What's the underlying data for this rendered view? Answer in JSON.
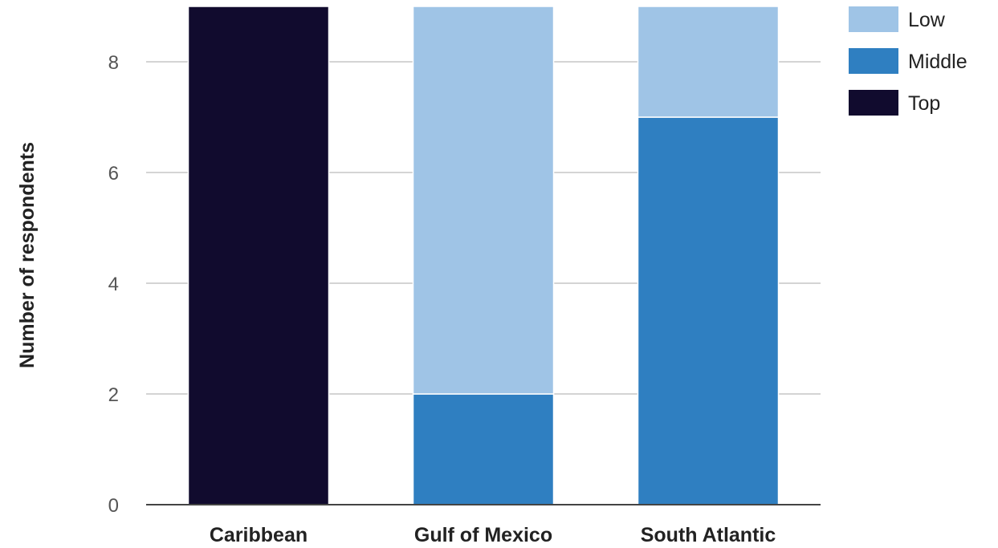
{
  "chart_data": {
    "type": "bar",
    "stacked": true,
    "categories": [
      "Caribbean",
      "Gulf of Mexico",
      "South Atlantic"
    ],
    "series": [
      {
        "name": "Top",
        "values": [
          9,
          0,
          0
        ],
        "color": "#110b2e"
      },
      {
        "name": "Middle",
        "values": [
          0,
          2,
          7
        ],
        "color": "#2f7fc1"
      },
      {
        "name": "Low",
        "values": [
          0,
          7,
          2
        ],
        "color": "#9fc4e6"
      }
    ],
    "ylabel": "Number of respondents",
    "xlabel": "",
    "ylim": [
      0,
      9
    ],
    "yticks": [
      0,
      2,
      4,
      6,
      8
    ],
    "grid": true,
    "legend": {
      "position": "top-right",
      "order": [
        "Low",
        "Middle",
        "Top"
      ]
    },
    "colors": {
      "grid": "#d4d4d4",
      "axis": "#444444"
    }
  }
}
